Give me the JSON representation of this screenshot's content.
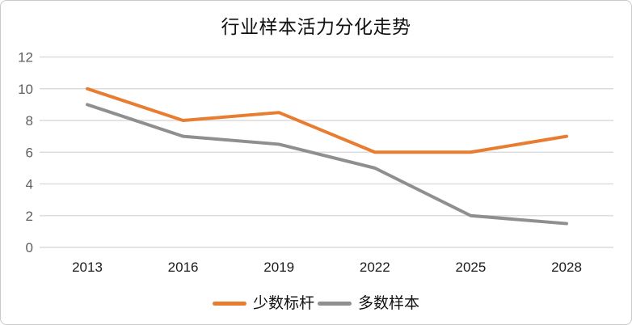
{
  "title": "行业样本活力分化走势",
  "colors": {
    "benchmark_orange": "#E87D31",
    "majority_gray": "#8F8F8F",
    "gridline": "#DCDCDC",
    "frame_border": "#C9C9C9",
    "y_tick_text": "#5F5F5F",
    "x_tick_text": "#1A1A1A"
  },
  "chart_data": {
    "type": "line",
    "title": "行业样本活力分化走势",
    "x": [
      "2013",
      "2016",
      "2019",
      "2022",
      "2025",
      "2028"
    ],
    "series": [
      {
        "name": "少数标杆",
        "color": "#E87D31",
        "values": [
          10,
          8,
          8.5,
          6,
          6,
          7
        ]
      },
      {
        "name": "多数样本",
        "color": "#8F8F8F",
        "values": [
          9,
          7,
          6.5,
          5,
          2,
          1.5
        ]
      }
    ],
    "xlabel": "",
    "ylabel": "",
    "ylim": [
      0,
      12
    ],
    "yticks": [
      0,
      2,
      4,
      6,
      8,
      10,
      12
    ],
    "grid": "horizontal-only",
    "legend_position": "bottom-center",
    "line_width": 4,
    "markers": "none"
  }
}
